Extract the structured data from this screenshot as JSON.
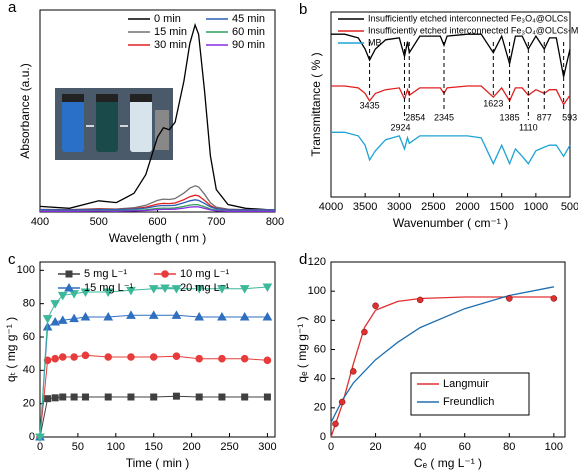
{
  "chart_data": [
    {
      "panel_label": "a",
      "type": "line",
      "xlabel": "Wavelength ( nm )",
      "ylabel": "Absorbance (a.u.)",
      "x": [
        400,
        450,
        500,
        530,
        560,
        580,
        600,
        610,
        620,
        630,
        645,
        655,
        664,
        670,
        680,
        690,
        700,
        720,
        750,
        800
      ],
      "xlim": [
        400,
        800
      ],
      "xticks": [
        400,
        500,
        600,
        700,
        800
      ],
      "ylim": [
        0,
        1.08
      ],
      "series": [
        {
          "name": "0 min",
          "color": "#000000",
          "values": [
            0.03,
            0.02,
            0.06,
            0.05,
            0.1,
            0.2,
            0.4,
            0.45,
            0.44,
            0.48,
            0.7,
            0.9,
            1.0,
            0.95,
            0.65,
            0.3,
            0.12,
            0.04,
            0.02,
            0.01
          ]
        },
        {
          "name": "15 min",
          "color": "#707070",
          "values": [
            0.014,
            0.013,
            0.018,
            0.016,
            0.023,
            0.036,
            0.062,
            0.069,
            0.067,
            0.072,
            0.101,
            0.127,
            0.14,
            0.134,
            0.095,
            0.049,
            0.026,
            0.015,
            0.013,
            0.011
          ]
        },
        {
          "name": "30 min",
          "color": "#e02020",
          "values": [
            0.012,
            0.012,
            0.015,
            0.014,
            0.018,
            0.026,
            0.042,
            0.046,
            0.045,
            0.048,
            0.066,
            0.082,
            0.09,
            0.086,
            0.062,
            0.034,
            0.02,
            0.013,
            0.012,
            0.011
          ]
        },
        {
          "name": "45 min",
          "color": "#2b5fb8",
          "values": [
            0.012,
            0.011,
            0.013,
            0.013,
            0.016,
            0.021,
            0.032,
            0.035,
            0.034,
            0.036,
            0.049,
            0.06,
            0.065,
            0.062,
            0.046,
            0.027,
            0.017,
            0.012,
            0.011,
            0.011
          ]
        },
        {
          "name": "60 min",
          "color": "#2e9e5a",
          "values": [
            0.006,
            0.006,
            0.007,
            0.007,
            0.009,
            0.012,
            0.019,
            0.021,
            0.02,
            0.022,
            0.03,
            0.037,
            0.04,
            0.038,
            0.028,
            0.016,
            0.009,
            0.006,
            0.006,
            0.005
          ]
        },
        {
          "name": "90 min",
          "color": "#8a2be2",
          "values": [
            0.004,
            0.004,
            0.005,
            0.004,
            0.006,
            0.008,
            0.013,
            0.014,
            0.014,
            0.015,
            0.021,
            0.026,
            0.028,
            0.027,
            0.019,
            0.011,
            0.006,
            0.004,
            0.004,
            0.003
          ]
        }
      ]
    },
    {
      "panel_label": "b",
      "type": "line",
      "xlabel": "Wavenumber ( cm⁻¹ )",
      "ylabel": "Transmittance ( % )",
      "x": [
        4000,
        3800,
        3600,
        3500,
        3435,
        3350,
        3200,
        3000,
        2924,
        2880,
        2854,
        2700,
        2400,
        2345,
        2300,
        2000,
        1800,
        1623,
        1500,
        1385,
        1300,
        1200,
        1110,
        1000,
        877,
        800,
        700,
        593,
        500
      ],
      "xlim": [
        4000,
        500
      ],
      "xticks": [
        4000,
        3500,
        3000,
        2500,
        2000,
        1500,
        1000,
        500
      ],
      "ylim": [
        0,
        100
      ],
      "peaks": [
        3435,
        2924,
        2854,
        2345,
        1623,
        1385,
        1110,
        877,
        593
      ],
      "series": [
        {
          "name": "Insufficiently etched interconnected Fe₃O₄@OLCs",
          "color": "#000000",
          "values": [
            88,
            88,
            86,
            80,
            74,
            80,
            85,
            86,
            76,
            84,
            78,
            87,
            87,
            82,
            87,
            88,
            88,
            78,
            87,
            72,
            87,
            87,
            80,
            87,
            80,
            86,
            86,
            65,
            80
          ]
        },
        {
          "name": "Insufficiently etched interconnected Fe₃O₄@OLCs-MB",
          "color": "#e02020",
          "values": [
            60,
            60,
            59,
            56,
            52,
            56,
            58,
            59,
            53,
            58,
            55,
            59,
            59,
            56,
            59,
            60,
            60,
            54,
            59,
            52,
            59,
            59,
            55,
            58,
            56,
            58,
            58,
            50,
            55
          ]
        },
        {
          "name": "MB",
          "color": "#1fa3d6",
          "values": [
            35,
            35,
            33,
            28,
            20,
            25,
            31,
            33,
            26,
            32,
            29,
            33,
            33,
            33,
            33,
            33,
            32,
            18,
            28,
            18,
            26,
            22,
            18,
            25,
            27,
            28,
            28,
            22,
            28
          ]
        }
      ]
    },
    {
      "panel_label": "c",
      "type": "line",
      "xlabel": "Time ( min )",
      "ylabel": "qₜ ( mg g⁻¹ )",
      "x": [
        0,
        10,
        20,
        30,
        45,
        60,
        90,
        120,
        150,
        180,
        210,
        240,
        270,
        300
      ],
      "xlim": [
        0,
        310
      ],
      "xticks": [
        0,
        50,
        100,
        150,
        200,
        250,
        300
      ],
      "ylim": [
        0,
        105
      ],
      "yticks": [
        0,
        20,
        40,
        60,
        80,
        100
      ],
      "series": [
        {
          "name": "5 mg L⁻¹",
          "color": "#404040",
          "marker": "square",
          "values": [
            0,
            23,
            23.5,
            24,
            24,
            24,
            24,
            24,
            24,
            24.5,
            24,
            24,
            24,
            24
          ]
        },
        {
          "name": "10 mg L⁻¹",
          "color": "#e83c3c",
          "marker": "circle",
          "values": [
            0,
            46,
            47,
            48,
            48,
            49,
            48,
            48,
            48,
            48.5,
            47,
            47,
            47,
            46
          ]
        },
        {
          "name": "15 mg L⁻¹",
          "color": "#2f6fc0",
          "marker": "triangle-up",
          "values": [
            0,
            66,
            69,
            70,
            71,
            72,
            72,
            73,
            73,
            73,
            72,
            72,
            72,
            72
          ]
        },
        {
          "name": "20 mg L⁻¹",
          "color": "#3cb89a",
          "marker": "triangle-down",
          "values": [
            0,
            71,
            80,
            85,
            86,
            87,
            87,
            88,
            89,
            89,
            89,
            89,
            89,
            90
          ]
        }
      ]
    },
    {
      "panel_label": "d",
      "type": "scatter",
      "xlabel": "Cₑ ( mg L⁻¹ )",
      "ylabel": "qₑ ( mg g⁻¹ )",
      "x": [
        2,
        5,
        10,
        15,
        20,
        40,
        80,
        100
      ],
      "values": [
        9,
        24,
        45,
        72,
        90,
        94,
        95,
        95
      ],
      "color": "#e03030",
      "xlim": [
        0,
        105
      ],
      "xticks": [
        0,
        20,
        40,
        60,
        80,
        100
      ],
      "ylim": [
        0,
        120
      ],
      "yticks": [
        0,
        20,
        40,
        60,
        80,
        100,
        120
      ],
      "series": [
        {
          "name": "Langmuir",
          "color": "#e03030",
          "x": [
            0,
            5,
            10,
            15,
            20,
            30,
            40,
            60,
            100
          ],
          "values": [
            0,
            22,
            50,
            75,
            87,
            93,
            95,
            96,
            96
          ]
        },
        {
          "name": "Freundlich",
          "color": "#1f6fb0",
          "x": [
            0,
            5,
            10,
            20,
            30,
            40,
            60,
            80,
            100
          ],
          "values": [
            10,
            25,
            37,
            53,
            65,
            75,
            88,
            97,
            103
          ]
        }
      ]
    }
  ]
}
